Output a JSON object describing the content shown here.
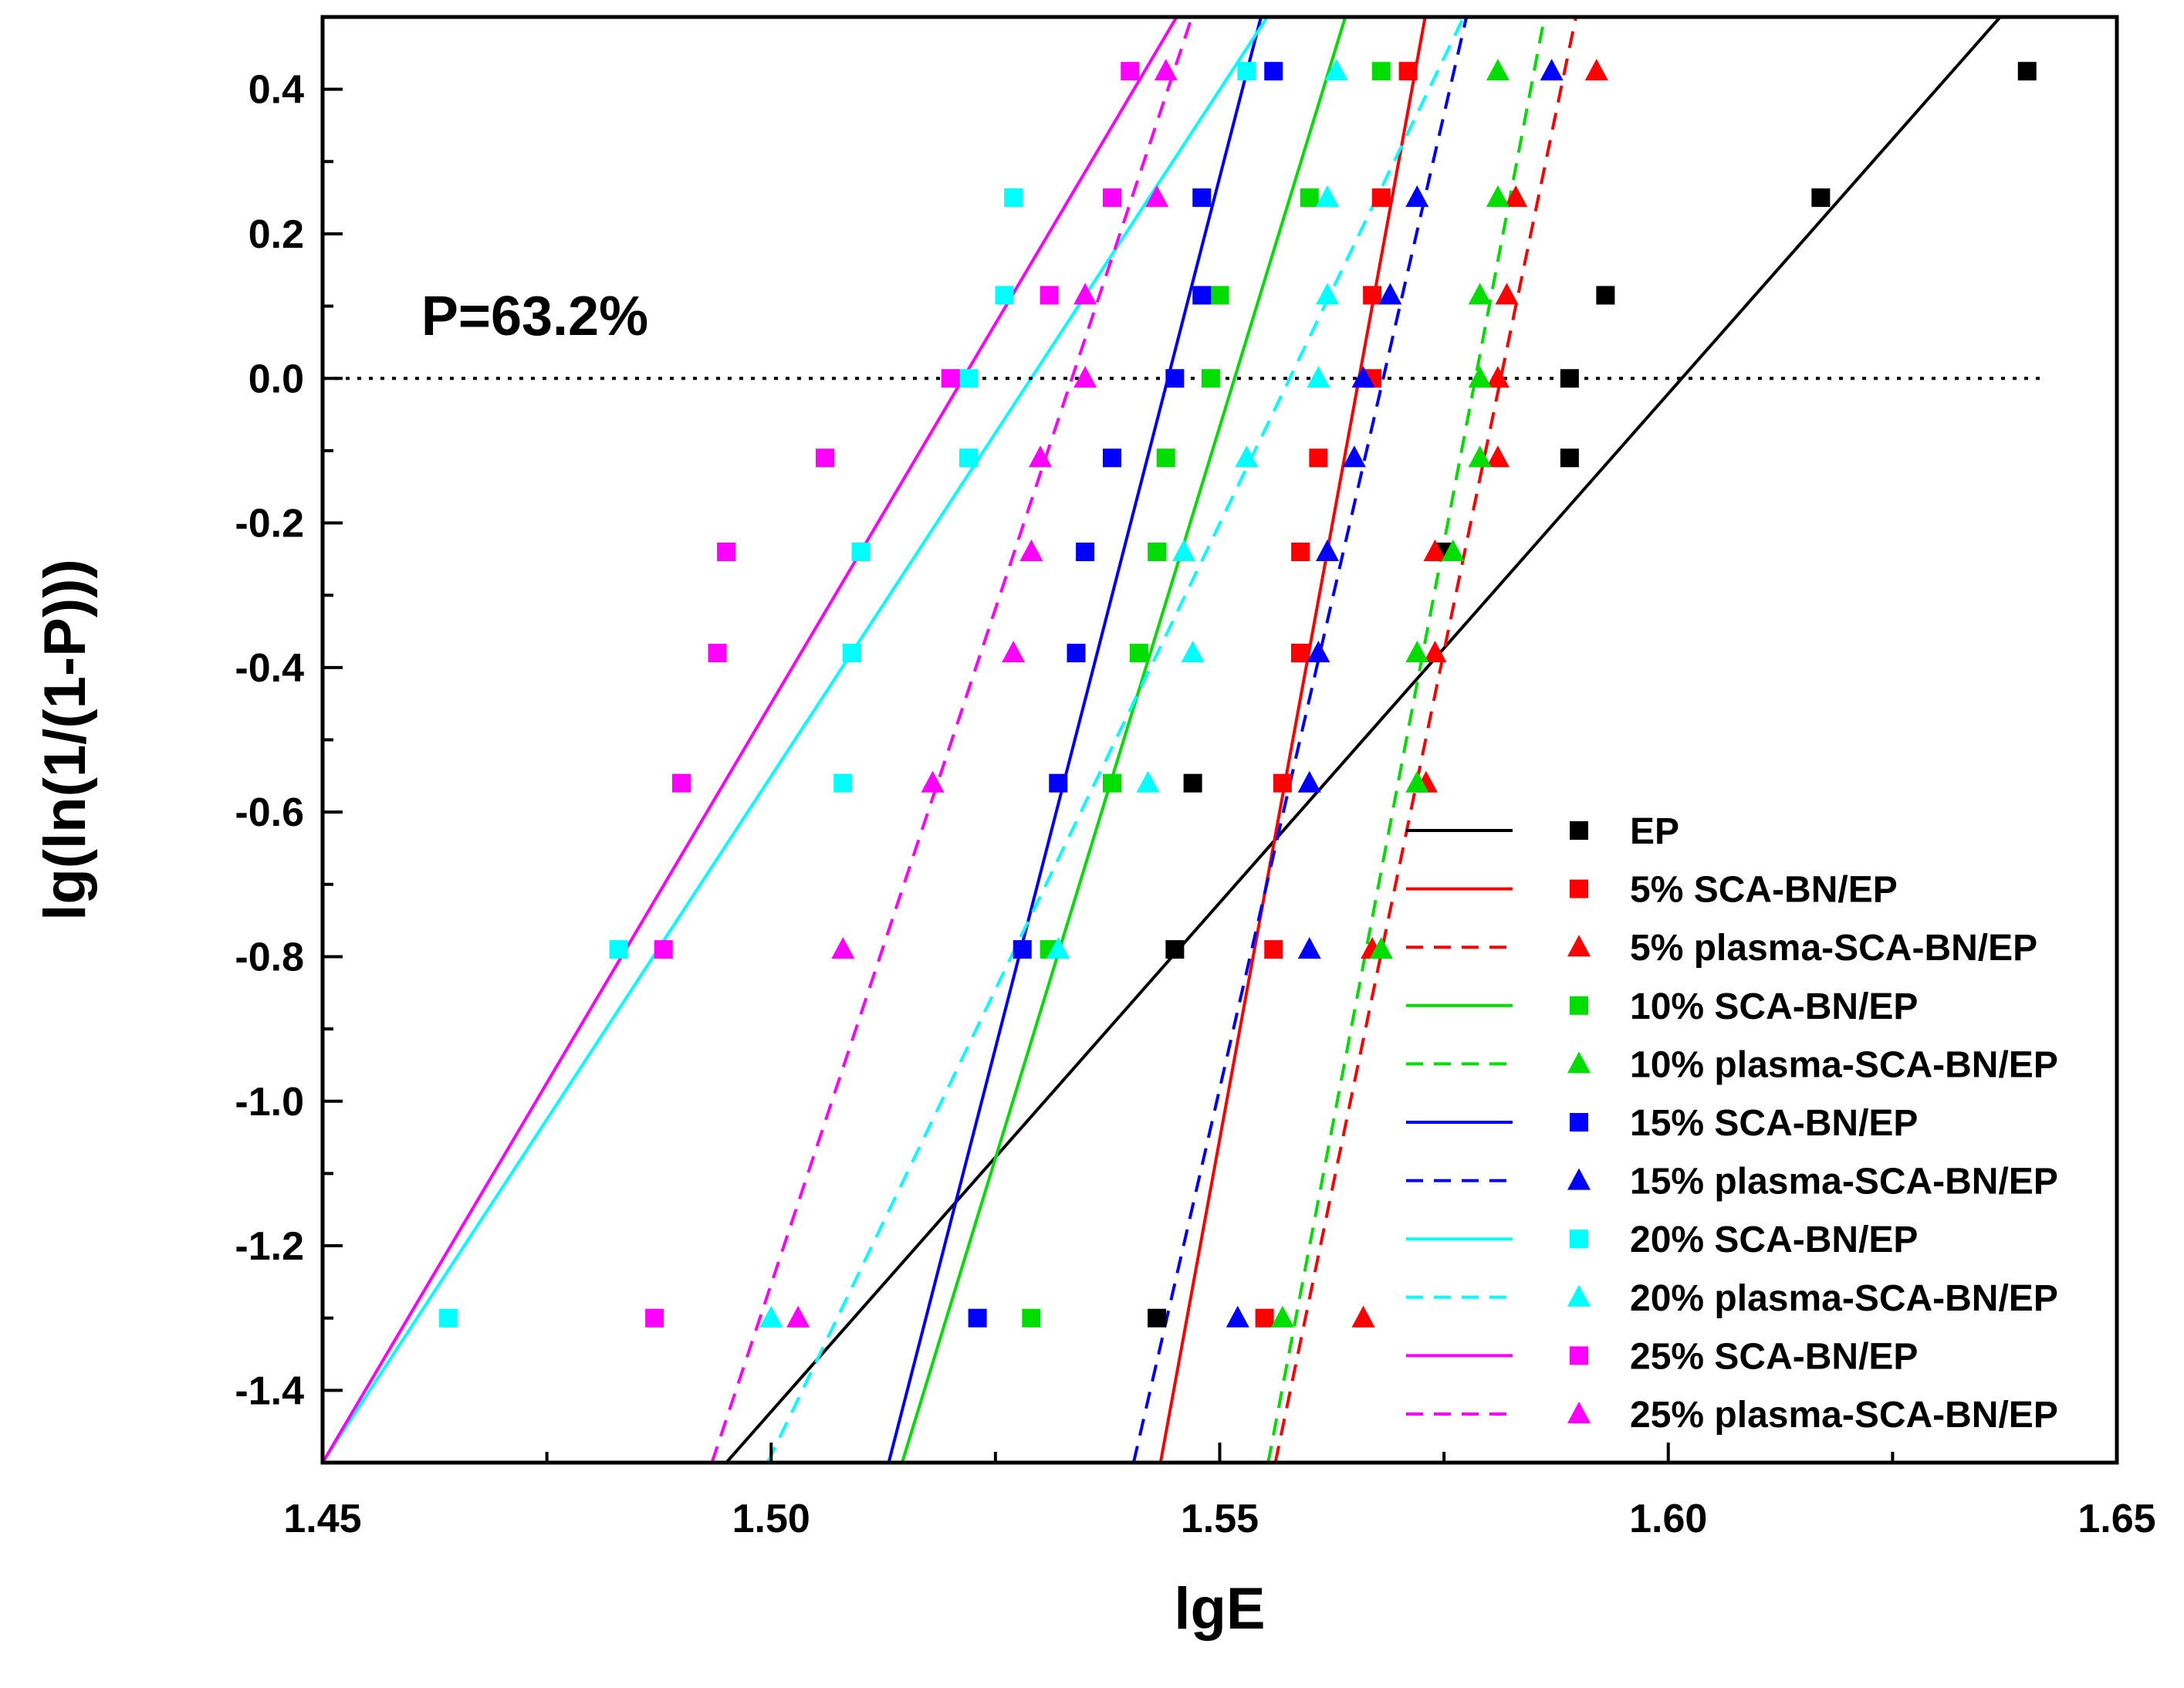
{
  "chart_data": {
    "type": "scatter",
    "title": "",
    "xlabel": "lgE",
    "ylabel": "lg(ln(1/(1-P)))",
    "xlim": [
      1.45,
      1.65
    ],
    "ylim": [
      -1.5,
      0.5
    ],
    "xticks": [
      1.45,
      1.5,
      1.55,
      1.6,
      1.65
    ],
    "xtick_labels": [
      "1.45",
      "1.50",
      "1.55",
      "1.60",
      "1.65"
    ],
    "yticks": [
      -1.4,
      -1.2,
      -1.0,
      -0.8,
      -0.6,
      -0.4,
      -0.2,
      0.0,
      0.2,
      0.4
    ],
    "ytick_labels": [
      "-1.4",
      "-1.2",
      "-1.0",
      "-0.8",
      "-0.6",
      "-0.4",
      "-0.2",
      "0.0",
      "0.2",
      "0.4"
    ],
    "grid": false,
    "legend_position": "bottom-right",
    "reference_line": {
      "y": 0.0,
      "style": "dotted"
    },
    "annotation": {
      "text": "P=63.2%",
      "x": 1.461,
      "y": 0.06
    },
    "y_levels": [
      -1.3,
      -0.79,
      -0.56,
      -0.38,
      -0.24,
      -0.11,
      0.0,
      0.115,
      0.25,
      0.425
    ],
    "series": [
      {
        "name": "EP",
        "color": "#000000",
        "marker": "square",
        "line": "solid",
        "x": [
          1.543,
          1.545,
          1.547,
          1.559,
          1.575,
          1.589,
          1.589,
          1.593,
          1.617,
          1.64
        ],
        "fit": [
          [
            1.495,
            -1.5
          ],
          [
            1.637,
            0.5
          ]
        ]
      },
      {
        "name": "5% SCA-BN/EP",
        "color": "#ff0000",
        "marker": "square",
        "line": "solid",
        "x": [
          1.555,
          1.556,
          1.557,
          1.559,
          1.559,
          1.561,
          1.567,
          1.567,
          1.568,
          1.571
        ],
        "fit": [
          [
            1.5434,
            -1.5
          ],
          [
            1.5729,
            0.5
          ]
        ]
      },
      {
        "name": "5% plasma-SCA-BN/EP",
        "color": "#ff0000",
        "marker": "triangle",
        "line": "dashed",
        "x": [
          1.566,
          1.567,
          1.573,
          1.574,
          1.574,
          1.581,
          1.581,
          1.582,
          1.583,
          1.592
        ],
        "fit": [
          [
            1.5562,
            -1.5
          ],
          [
            1.5897,
            0.5
          ]
        ]
      },
      {
        "name": "10% SCA-BN/EP",
        "color": "#00dd00",
        "marker": "square",
        "line": "solid",
        "x": [
          1.529,
          1.531,
          1.538,
          1.541,
          1.543,
          1.544,
          1.549,
          1.55,
          1.56,
          1.568
        ],
        "fit": [
          [
            1.5146,
            -1.5
          ],
          [
            1.564,
            0.5
          ]
        ]
      },
      {
        "name": "10% plasma-SCA-BN/EP",
        "color": "#00dd00",
        "marker": "triangle",
        "line": "dashed",
        "x": [
          1.557,
          1.568,
          1.572,
          1.572,
          1.576,
          1.579,
          1.579,
          1.579,
          1.581,
          1.581
        ],
        "fit": [
          [
            1.5554,
            -1.5
          ],
          [
            1.5862,
            0.5
          ]
        ]
      },
      {
        "name": "15% SCA-BN/EP",
        "color": "#0000ff",
        "marker": "square",
        "line": "solid",
        "x": [
          1.523,
          1.528,
          1.532,
          1.534,
          1.535,
          1.538,
          1.545,
          1.548,
          1.548,
          1.556
        ],
        "fit": [
          [
            1.5131,
            -1.5
          ],
          [
            1.5546,
            0.5
          ]
        ]
      },
      {
        "name": "15% plasma-SCA-BN/EP",
        "color": "#0000ff",
        "marker": "triangle",
        "line": "dashed",
        "x": [
          1.552,
          1.56,
          1.56,
          1.561,
          1.562,
          1.565,
          1.566,
          1.569,
          1.572,
          1.587
        ],
        "fit": [
          [
            1.5404,
            -1.5
          ],
          [
            1.5775,
            0.5
          ]
        ]
      },
      {
        "name": "20% SCA-BN/EP",
        "color": "#00ffff",
        "marker": "square",
        "line": "solid",
        "x": [
          1.464,
          1.483,
          1.508,
          1.509,
          1.51,
          1.522,
          1.522,
          1.526,
          1.527,
          1.553
        ],
        "fit": [
          [
            1.45,
            -1.5
          ],
          [
            1.5553,
            0.5
          ]
        ]
      },
      {
        "name": "20% plasma-SCA-BN/EP",
        "color": "#00ffff",
        "marker": "triangle",
        "line": "dashed",
        "x": [
          1.5,
          1.532,
          1.542,
          1.547,
          1.546,
          1.553,
          1.561,
          1.562,
          1.562,
          1.563
        ],
        "fit": [
          [
            1.4996,
            -1.5
          ],
          [
            1.5772,
            0.5
          ]
        ]
      },
      {
        "name": "25% SCA-BN/EP",
        "color": "#ff00ff",
        "marker": "square",
        "line": "solid",
        "x": [
          1.487,
          1.488,
          1.49,
          1.494,
          1.495,
          1.506,
          1.52,
          1.531,
          1.538,
          1.54
        ],
        "fit": [
          [
            1.45,
            -1.5
          ],
          [
            1.5452,
            0.5
          ]
        ]
      },
      {
        "name": "25% plasma-SCA-BN/EP",
        "color": "#ff00ff",
        "marker": "triangle",
        "line": "dashed",
        "x": [
          1.503,
          1.508,
          1.518,
          1.527,
          1.529,
          1.53,
          1.535,
          1.535,
          1.543,
          1.544
        ],
        "fit": [
          [
            1.4934,
            -1.5
          ],
          [
            1.5469,
            0.5
          ]
        ]
      }
    ]
  }
}
